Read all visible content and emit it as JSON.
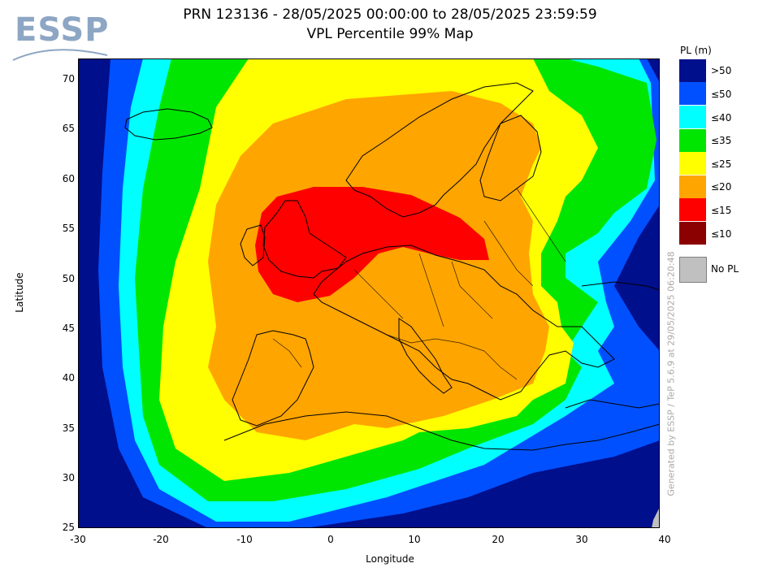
{
  "logo": {
    "text": "ESSP"
  },
  "title": {
    "line1": "PRN 123136 - 28/05/2025 00:00:00 to 28/05/2025 23:59:59",
    "line2": "VPL Percentile 99% Map"
  },
  "axes": {
    "xlabel": "Longitude",
    "ylabel": "Latitude",
    "xticks": [
      "-30",
      "-20",
      "-10",
      "0",
      "10",
      "20",
      "30",
      "40"
    ],
    "yticks": [
      "70",
      "65",
      "60",
      "55",
      "50",
      "45",
      "40",
      "35",
      "30",
      "25"
    ],
    "xlim": [
      -30,
      40
    ],
    "ylim": [
      25,
      72
    ]
  },
  "legend": {
    "title": "PL (m)",
    "items": [
      {
        "label": ">50",
        "color": "#000f8c"
      },
      {
        "label": "≤50",
        "color": "#0050ff"
      },
      {
        "label": "≤40",
        "color": "#00ffff"
      },
      {
        "label": "≤35",
        "color": "#00e600"
      },
      {
        "label": "≤25",
        "color": "#ffff00"
      },
      {
        "label": "≤20",
        "color": "#ffa500"
      },
      {
        "label": "≤15",
        "color": "#ff0000"
      },
      {
        "label": "≤10",
        "color": "#8b0000"
      }
    ],
    "no_pl_label": "No PL",
    "no_pl_color": "#c0c0c0"
  },
  "credit": "Generated by ESSP / TeP 5.6.9 at 29/05/2025 06:20:48"
}
